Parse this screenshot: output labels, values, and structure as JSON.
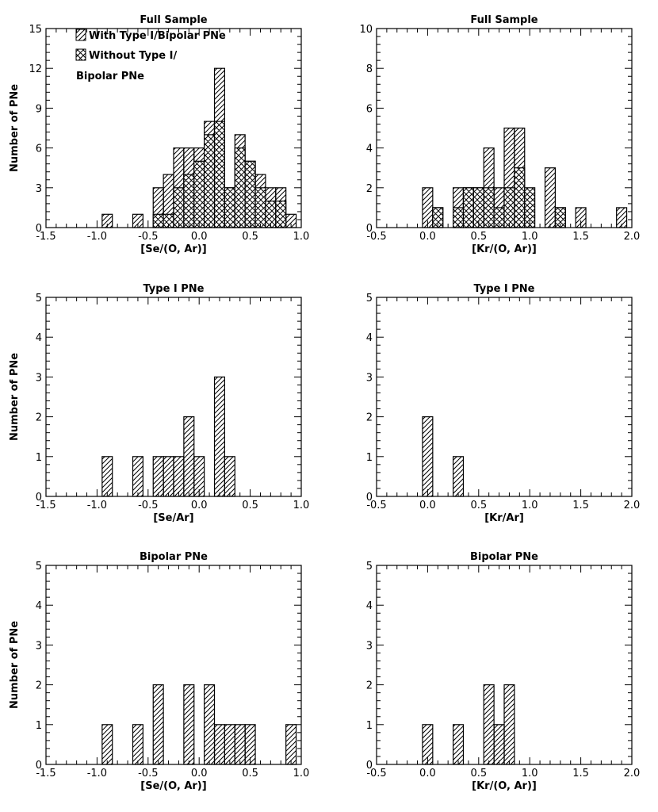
{
  "chart_data": [
    {
      "type": "bar",
      "title": "Full Sample",
      "xlabel": "[Se/(O, Ar)]",
      "ylabel": "Number of PNe",
      "xlim": [
        -1.5,
        1.0
      ],
      "ylim": [
        0,
        15
      ],
      "xticks": [
        "-1.5",
        "-1.0",
        "-0.5",
        "0.0",
        "0.5",
        "1.0"
      ],
      "yticks": [
        "0",
        "3",
        "6",
        "9",
        "12",
        "15"
      ],
      "bin_width": 0.1,
      "series": [
        {
          "name": "With Type I/Bipolar PNe",
          "pattern": "hatch",
          "bins": [
            [
              -0.9,
              1
            ],
            [
              -0.6,
              1
            ],
            [
              -0.4,
              3
            ],
            [
              -0.3,
              4
            ],
            [
              -0.2,
              6
            ],
            [
              -0.1,
              6
            ],
            [
              0.0,
              6
            ],
            [
              0.1,
              8
            ],
            [
              0.2,
              12
            ],
            [
              0.3,
              3
            ],
            [
              0.4,
              7
            ],
            [
              0.5,
              5
            ],
            [
              0.6,
              4
            ],
            [
              0.7,
              3
            ],
            [
              0.8,
              3
            ],
            [
              0.9,
              1
            ]
          ]
        },
        {
          "name": "Without Type I/ Bipolar PNe",
          "pattern": "crosshatch",
          "bins": [
            [
              -0.4,
              1
            ],
            [
              -0.3,
              1
            ],
            [
              -0.2,
              3
            ],
            [
              -0.1,
              4
            ],
            [
              0.0,
              5
            ],
            [
              0.1,
              7
            ],
            [
              0.2,
              8
            ],
            [
              0.3,
              3
            ],
            [
              0.4,
              6
            ],
            [
              0.5,
              5
            ],
            [
              0.6,
              3
            ],
            [
              0.7,
              2
            ],
            [
              0.8,
              2
            ]
          ]
        }
      ]
    },
    {
      "type": "bar",
      "title": "Full Sample",
      "xlabel": "[Kr/(O, Ar)]",
      "ylabel": "",
      "xlim": [
        -0.5,
        2.0
      ],
      "ylim": [
        0,
        10
      ],
      "xticks": [
        "-0.5",
        "0.0",
        "0.5",
        "1.0",
        "1.5",
        "2.0"
      ],
      "yticks": [
        "0",
        "2",
        "4",
        "6",
        "8",
        "10"
      ],
      "bin_width": 0.1,
      "series": [
        {
          "name": "With Type I/Bipolar PNe",
          "pattern": "hatch",
          "bins": [
            [
              0.0,
              2
            ],
            [
              0.1,
              1
            ],
            [
              0.3,
              2
            ],
            [
              0.4,
              2
            ],
            [
              0.5,
              2
            ],
            [
              0.6,
              4
            ],
            [
              0.7,
              2
            ],
            [
              0.8,
              5
            ],
            [
              0.9,
              5
            ],
            [
              1.2,
              3
            ],
            [
              1.3,
              1
            ],
            [
              1.5,
              1
            ],
            [
              1.9,
              1
            ]
          ]
        },
        {
          "name": "Without Type I/ Bipolar PNe",
          "pattern": "crosshatch",
          "bins": [
            [
              0.1,
              1
            ],
            [
              0.3,
              1
            ],
            [
              0.4,
              2
            ],
            [
              0.5,
              2
            ],
            [
              0.6,
              2
            ],
            [
              0.7,
              1
            ],
            [
              0.8,
              2
            ],
            [
              0.9,
              3
            ],
            [
              1.0,
              2
            ],
            [
              1.3,
              1
            ]
          ]
        }
      ]
    },
    {
      "type": "bar",
      "title": "Type I PNe",
      "xlabel": "[Se/Ar]",
      "ylabel": "Number of PNe",
      "xlim": [
        -1.5,
        1.0
      ],
      "ylim": [
        0,
        5
      ],
      "xticks": [
        "-1.5",
        "-1.0",
        "-0.5",
        "0.0",
        "0.5",
        "1.0"
      ],
      "yticks": [
        "0",
        "1",
        "2",
        "3",
        "4",
        "5"
      ],
      "bin_width": 0.1,
      "series": [
        {
          "name": "Type I PNe",
          "pattern": "hatch",
          "bins": [
            [
              -0.9,
              1
            ],
            [
              -0.6,
              1
            ],
            [
              -0.4,
              1
            ],
            [
              -0.3,
              1
            ],
            [
              -0.2,
              1
            ],
            [
              -0.1,
              2
            ],
            [
              0.0,
              1
            ],
            [
              0.2,
              3
            ],
            [
              0.3,
              1
            ]
          ]
        }
      ]
    },
    {
      "type": "bar",
      "title": "Type I PNe",
      "xlabel": "[Kr/Ar]",
      "ylabel": "",
      "xlim": [
        -0.5,
        2.0
      ],
      "ylim": [
        0,
        5
      ],
      "xticks": [
        "-0.5",
        "0.0",
        "0.5",
        "1.0",
        "1.5",
        "2.0"
      ],
      "yticks": [
        "0",
        "1",
        "2",
        "3",
        "4",
        "5"
      ],
      "bin_width": 0.1,
      "series": [
        {
          "name": "Type I PNe",
          "pattern": "hatch",
          "bins": [
            [
              0.0,
              2
            ],
            [
              0.3,
              1
            ]
          ]
        }
      ]
    },
    {
      "type": "bar",
      "title": "Bipolar PNe",
      "xlabel": "[Se/(O, Ar)]",
      "ylabel": "Number of PNe",
      "xlim": [
        -1.5,
        1.0
      ],
      "ylim": [
        0,
        5
      ],
      "xticks": [
        "-1.5",
        "-1.0",
        "-0.5",
        "0.0",
        "0.5",
        "1.0"
      ],
      "yticks": [
        "0",
        "1",
        "2",
        "3",
        "4",
        "5"
      ],
      "bin_width": 0.1,
      "series": [
        {
          "name": "Bipolar PNe",
          "pattern": "hatch",
          "bins": [
            [
              -0.9,
              1
            ],
            [
              -0.6,
              1
            ],
            [
              -0.4,
              2
            ],
            [
              -0.1,
              2
            ],
            [
              0.1,
              2
            ],
            [
              0.2,
              1
            ],
            [
              0.3,
              1
            ],
            [
              0.4,
              1
            ],
            [
              0.5,
              1
            ],
            [
              0.9,
              1
            ]
          ]
        }
      ]
    },
    {
      "type": "bar",
      "title": "Bipolar PNe",
      "xlabel": "[Kr/(O, Ar)]",
      "ylabel": "",
      "xlim": [
        -0.5,
        2.0
      ],
      "ylim": [
        0,
        5
      ],
      "xticks": [
        "-0.5",
        "0.0",
        "0.5",
        "1.0",
        "1.5",
        "2.0"
      ],
      "yticks": [
        "0",
        "1",
        "2",
        "3",
        "4",
        "5"
      ],
      "bin_width": 0.1,
      "series": [
        {
          "name": "Bipolar PNe",
          "pattern": "hatch",
          "bins": [
            [
              0.0,
              1
            ],
            [
              0.3,
              1
            ],
            [
              0.6,
              2
            ],
            [
              0.7,
              1
            ],
            [
              0.8,
              2
            ]
          ]
        }
      ]
    }
  ],
  "legend": {
    "hatch_label": "With Type I/Bipolar PNe",
    "cross_label_line1": "Without Type I/",
    "cross_label_line2": "Bipolar PNe"
  }
}
